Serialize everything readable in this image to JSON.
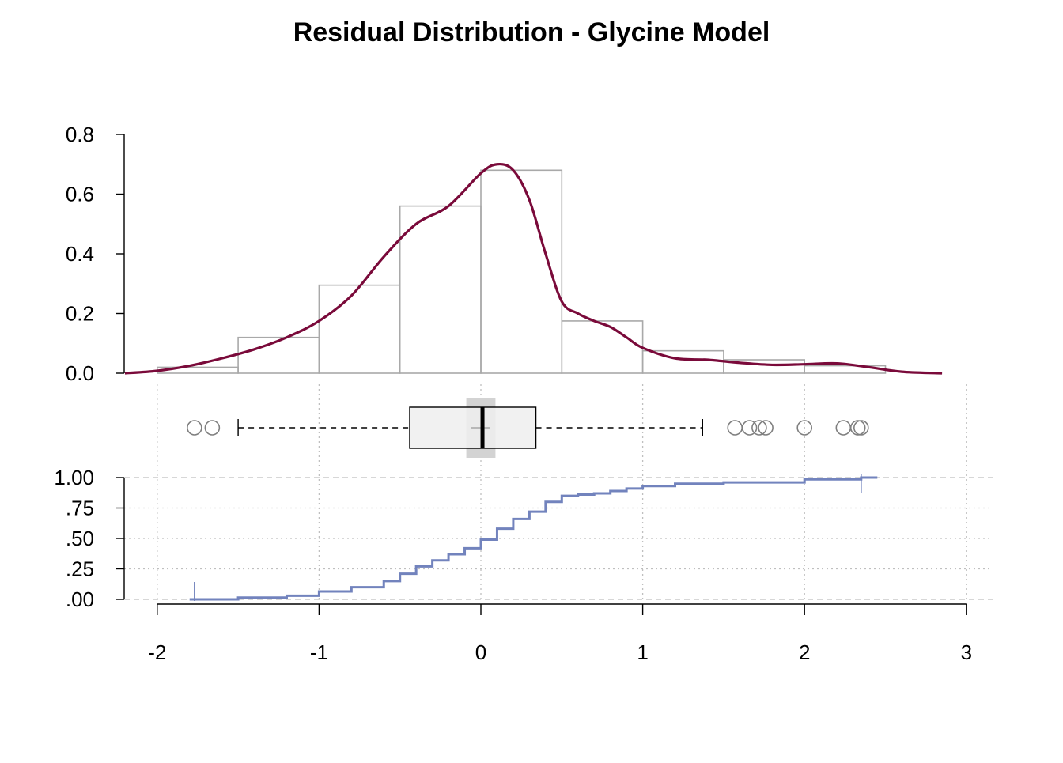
{
  "chart_data": {
    "title": "Residual Distribution - Glycine Model",
    "colors": {
      "density": "#7A0A3A",
      "histogram": "#A9A9A9",
      "ecdf": "#7283BD",
      "grid": "#BFBFBF",
      "box_fill": "#EEEEEE",
      "outlier": "#7F7F7F"
    },
    "x_axis": {
      "range": [
        -2.2,
        3.0
      ],
      "ticks": [
        -2,
        -1,
        0,
        1,
        2,
        3
      ],
      "tick_labels": [
        "-2",
        "-1",
        "0",
        "1",
        "2",
        "3"
      ]
    },
    "histogram": {
      "type": "bar",
      "y_range": [
        0,
        0.8
      ],
      "y_ticks": [
        0,
        0.2,
        0.4,
        0.6,
        0.8
      ],
      "y_tick_labels": [
        "0.0",
        "0.2",
        "0.4",
        "0.6",
        "0.8"
      ],
      "breaks": [
        -2,
        -1.5,
        -1,
        -0.5,
        0,
        0.5,
        1,
        1.5,
        2,
        2.5
      ],
      "density": [
        0.02,
        0.12,
        0.295,
        0.56,
        0.68,
        0.175,
        0.075,
        0.045,
        0.025
      ]
    },
    "density_curve": {
      "type": "line",
      "x": [
        -2.2,
        -2.0,
        -1.8,
        -1.6,
        -1.4,
        -1.2,
        -1.0,
        -0.8,
        -0.6,
        -0.4,
        -0.2,
        0.0,
        0.1,
        0.2,
        0.3,
        0.4,
        0.5,
        0.6,
        0.7,
        0.8,
        0.9,
        1.0,
        1.2,
        1.4,
        1.6,
        1.8,
        2.0,
        2.2,
        2.4,
        2.6,
        2.85
      ],
      "y": [
        0.0,
        0.008,
        0.025,
        0.05,
        0.08,
        0.12,
        0.175,
        0.26,
        0.39,
        0.5,
        0.56,
        0.67,
        0.7,
        0.68,
        0.58,
        0.4,
        0.24,
        0.2,
        0.175,
        0.155,
        0.12,
        0.085,
        0.05,
        0.045,
        0.035,
        0.028,
        0.03,
        0.033,
        0.02,
        0.005,
        0.0
      ]
    },
    "boxplot": {
      "type": "box",
      "whisker_low": -1.5,
      "q1": -0.44,
      "median": 0.01,
      "q3": 0.34,
      "whisker_high": 1.37,
      "mean": 0.0,
      "mean_ci": [
        -0.09,
        0.09
      ],
      "outliers": [
        -1.77,
        -1.66,
        1.57,
        1.66,
        1.72,
        1.76,
        2.0,
        2.24,
        2.33,
        2.35
      ]
    },
    "ecdf": {
      "type": "line",
      "y_range": [
        0,
        1
      ],
      "y_ticks": [
        0,
        0.25,
        0.5,
        0.75,
        1.0
      ],
      "y_tick_labels": [
        ".00",
        ".25",
        ".50",
        ".75",
        "1.00"
      ],
      "x_min": -1.77,
      "x_max": 2.35,
      "x": [
        -1.8,
        -1.77,
        -1.5,
        -1.2,
        -1.0,
        -0.8,
        -0.6,
        -0.5,
        -0.4,
        -0.3,
        -0.2,
        -0.1,
        0.0,
        0.1,
        0.2,
        0.3,
        0.4,
        0.5,
        0.6,
        0.7,
        0.8,
        0.9,
        1.0,
        1.2,
        1.5,
        2.0,
        2.35,
        2.45
      ],
      "y": [
        0.0,
        0.0,
        0.015,
        0.03,
        0.065,
        0.1,
        0.15,
        0.21,
        0.27,
        0.32,
        0.37,
        0.42,
        0.49,
        0.58,
        0.66,
        0.72,
        0.8,
        0.85,
        0.86,
        0.87,
        0.89,
        0.91,
        0.93,
        0.95,
        0.96,
        0.985,
        1.0,
        1.0
      ]
    }
  }
}
